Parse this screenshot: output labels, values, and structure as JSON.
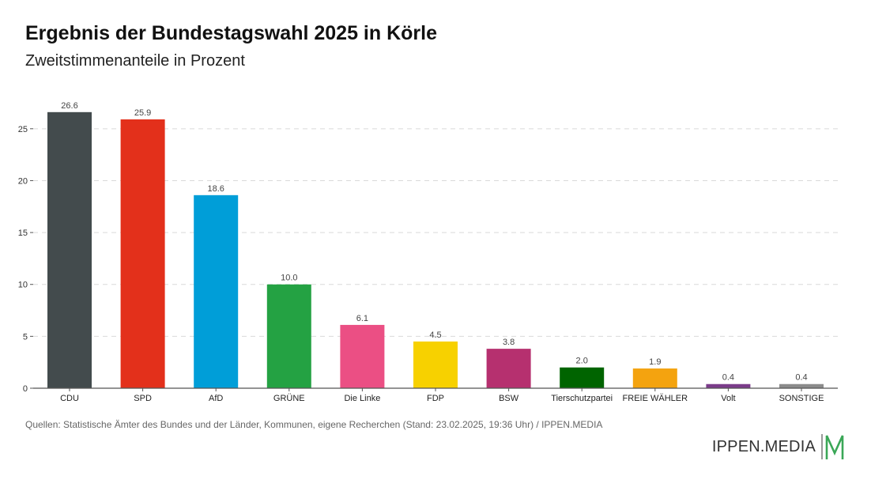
{
  "title": "Ergebnis der Bundestagswahl 2025 in Körle",
  "subtitle": "Zweitstimmenanteile in Prozent",
  "source": "Quellen: Statistische Ämter des Bundes und der Länder, Kommunen, eigene Recherchen (Stand: 23.02.2025, 19:36 Uhr) / IPPEN.MEDIA",
  "logo_text": "IPPEN.MEDIA",
  "colors": {
    "accent": "#3aa757",
    "grid": "#d9d9d9",
    "axis": "#555555"
  },
  "chart_data": {
    "type": "bar",
    "title": "Ergebnis der Bundestagswahl 2025 in Körle",
    "subtitle": "Zweitstimmenanteile in Prozent",
    "xlabel": "",
    "ylabel": "",
    "ylim": [
      0,
      27.5
    ],
    "yticks": [
      0,
      5,
      10,
      15,
      20,
      25
    ],
    "grid": true,
    "categories": [
      "CDU",
      "SPD",
      "AfD",
      "GRÜNE",
      "Die Linke",
      "FDP",
      "BSW",
      "Tierschutzpartei",
      "FREIE WÄHLER",
      "Volt",
      "SONSTIGE"
    ],
    "values": [
      26.6,
      25.9,
      18.6,
      10.0,
      6.1,
      4.5,
      3.8,
      2.0,
      1.9,
      0.4,
      0.4
    ],
    "value_labels": [
      "26.6",
      "25.9",
      "18.6",
      "10.0",
      "6.1",
      "4.5",
      "3.8",
      "2.0",
      "1.9",
      "0.4",
      "0.4"
    ],
    "bar_colors": [
      "#434b4d",
      "#e3301b",
      "#009ed8",
      "#24a243",
      "#eb4f84",
      "#f7d100",
      "#b6306f",
      "#006400",
      "#f4a30f",
      "#7b3c8a",
      "#8b8b8b"
    ]
  }
}
